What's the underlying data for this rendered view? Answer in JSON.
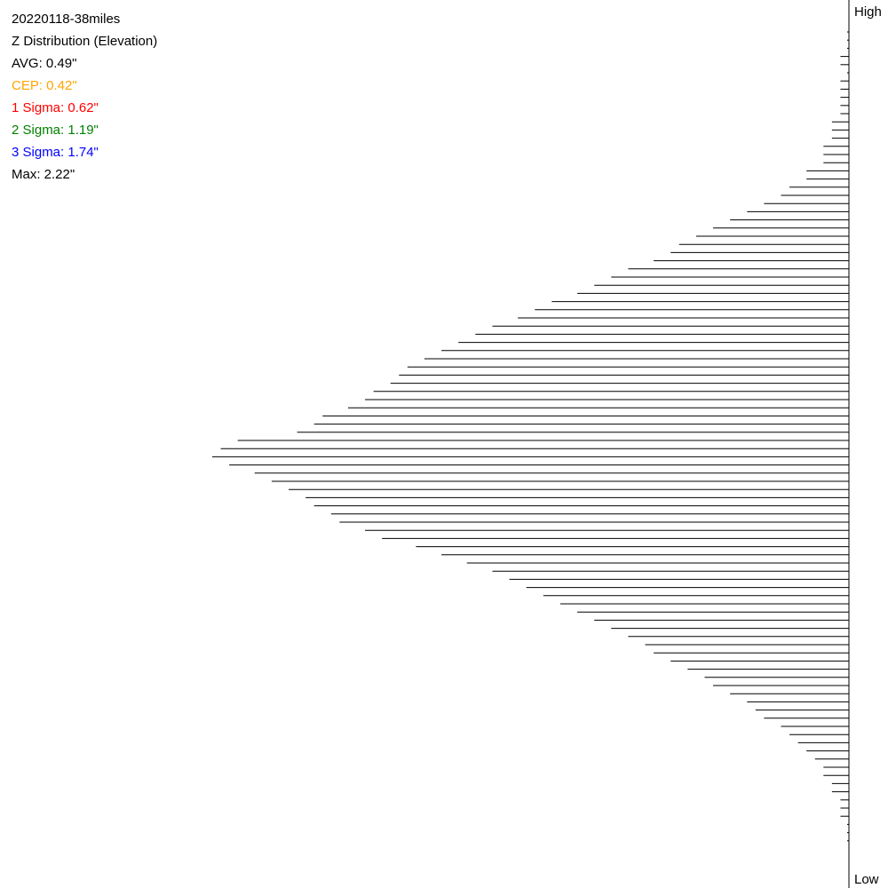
{
  "stats": {
    "title": "20220118-38miles",
    "subtitle": "Z Distribution (Elevation)",
    "avg": "AVG: 0.49\"",
    "cep": "CEP: 0.42\"",
    "sigma1": "1 Sigma: 0.62\"",
    "sigma2": "2 Sigma: 1.19\"",
    "sigma3": "3 Sigma: 1.74\"",
    "max": "Max: 2.22\""
  },
  "colors": {
    "text": "#000000",
    "cep": "#ffa500",
    "sigma1": "#ff0000",
    "sigma2": "#008000",
    "sigma3": "#0000ff",
    "bars": "#000000"
  },
  "axis": {
    "high_label": "High",
    "low_label": "Low"
  },
  "chart_data": {
    "type": "histogram",
    "orientation": "horizontal",
    "bins_from": "high",
    "xlabel": "",
    "ylabel": "",
    "grid": false,
    "ylim": [
      0,
      100
    ],
    "values": [
      0,
      0,
      0,
      1,
      1,
      0,
      1,
      1,
      1,
      1,
      1,
      2,
      2,
      2,
      3,
      3,
      3,
      5,
      5,
      7,
      8,
      10,
      12,
      14,
      16,
      18,
      20,
      21,
      23,
      26,
      28,
      30,
      32,
      35,
      37,
      39,
      42,
      44,
      46,
      48,
      50,
      52,
      53,
      54,
      56,
      57,
      59,
      62,
      63,
      65,
      72,
      74,
      75,
      73,
      70,
      68,
      66,
      64,
      63,
      61,
      60,
      57,
      55,
      51,
      48,
      45,
      42,
      40,
      38,
      36,
      34,
      32,
      30,
      28,
      26,
      24,
      23,
      21,
      19,
      17,
      16,
      14,
      12,
      11,
      10,
      8,
      7,
      6,
      5,
      4,
      3,
      3,
      2,
      2,
      1,
      1,
      1,
      0,
      0,
      0
    ]
  }
}
